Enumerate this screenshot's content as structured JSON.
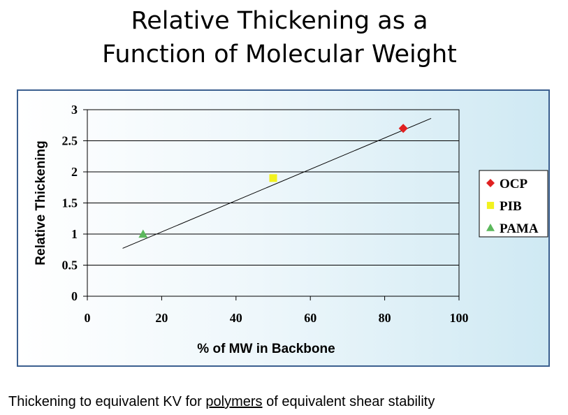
{
  "slide": {
    "title_line1": "Relative Thickening as a",
    "title_line2": "Function of Molecular Weight"
  },
  "caption": {
    "before": "Thickening to equivalent KV for ",
    "link": "polymers",
    "after": " of equivalent shear stability"
  },
  "chart_data": {
    "type": "scatter",
    "title": "",
    "xlabel": "% of MW in Backbone",
    "ylabel": "Relative Thickening",
    "xlim": [
      0,
      100
    ],
    "ylim": [
      0,
      3
    ],
    "x_ticks": [
      0,
      20,
      40,
      60,
      80,
      100
    ],
    "x_tick_labels": [
      "0",
      "20",
      "40",
      "60",
      "80",
      "100"
    ],
    "y_ticks": [
      0,
      0.5,
      1,
      1.5,
      2,
      2.5,
      3
    ],
    "y_tick_labels": [
      "0",
      "0.5",
      "1",
      "1.5",
      "2",
      "2.5",
      "3"
    ],
    "grid": "horizontal",
    "legend_position": "right",
    "series": [
      {
        "name": "OCP",
        "marker": "diamond",
        "color": "#e02020",
        "x": [
          85
        ],
        "y": [
          2.7
        ]
      },
      {
        "name": "PIB",
        "marker": "square",
        "color": "#f2f21e",
        "x": [
          50
        ],
        "y": [
          1.9
        ]
      },
      {
        "name": "PAMA",
        "marker": "triangle",
        "color": "#5cb85c",
        "x": [
          15
        ],
        "y": [
          1.0
        ]
      }
    ],
    "trendline": {
      "x": [
        9.5,
        92.5
      ],
      "y": [
        0.77,
        2.86
      ]
    }
  }
}
